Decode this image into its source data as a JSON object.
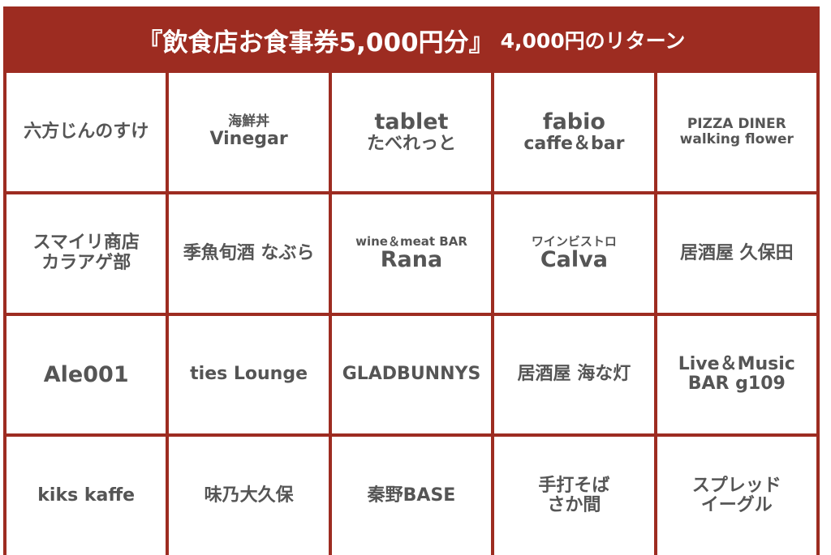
{
  "header": {
    "title_main": "『飲食店お食事券5,000円分』",
    "title_sub": "4,000円のリターン"
  },
  "colors": {
    "accent": "#9d2c21",
    "text": "#555555"
  },
  "shops": [
    {
      "lines": [
        {
          "text": "六方じんのすけ",
          "size": "m"
        }
      ]
    },
    {
      "lines": [
        {
          "text": "海鮮丼",
          "size": "s"
        },
        {
          "text": "Vinegar",
          "size": "m"
        }
      ]
    },
    {
      "lines": [
        {
          "text": "tablet",
          "size": "l"
        },
        {
          "text": "たべれっと",
          "size": "m"
        }
      ]
    },
    {
      "lines": [
        {
          "text": "fabio",
          "size": "l"
        },
        {
          "text": "caffe＆bar",
          "size": "m"
        }
      ]
    },
    {
      "lines": [
        {
          "text": "PIZZA DINER",
          "size": "s"
        },
        {
          "text": "walking flower",
          "size": "s"
        }
      ]
    },
    {
      "lines": [
        {
          "text": "スマイリ商店",
          "size": "m"
        },
        {
          "text": "カラアゲ部",
          "size": "m"
        }
      ]
    },
    {
      "lines": [
        {
          "text": "季魚旬酒 なぶら",
          "size": "m"
        }
      ]
    },
    {
      "lines": [
        {
          "text": "wine＆meat BAR",
          "size": "xs"
        },
        {
          "text": "Rana",
          "size": "l"
        }
      ]
    },
    {
      "lines": [
        {
          "text": "ワインビストロ",
          "size": "xs"
        },
        {
          "text": "Calva",
          "size": "l"
        }
      ]
    },
    {
      "lines": [
        {
          "text": "居酒屋 久保田",
          "size": "m"
        }
      ]
    },
    {
      "lines": [
        {
          "text": "Ale001",
          "size": "l"
        }
      ]
    },
    {
      "lines": [
        {
          "text": "ties Lounge",
          "size": "m"
        }
      ]
    },
    {
      "lines": [
        {
          "text": "GLADBUNNYS",
          "size": "m"
        }
      ]
    },
    {
      "lines": [
        {
          "text": "居酒屋 海な灯",
          "size": "m"
        }
      ]
    },
    {
      "lines": [
        {
          "text": "Live＆Music",
          "size": "m"
        },
        {
          "text": "BAR g109",
          "size": "m"
        }
      ]
    },
    {
      "lines": [
        {
          "text": "kiks kaffe",
          "size": "m"
        }
      ]
    },
    {
      "lines": [
        {
          "text": "味乃大久保",
          "size": "m"
        }
      ]
    },
    {
      "lines": [
        {
          "text": "秦野BASE",
          "size": "m"
        }
      ]
    },
    {
      "lines": [
        {
          "text": "手打そば",
          "size": "m"
        },
        {
          "text": "さか間",
          "size": "m"
        }
      ]
    },
    {
      "lines": [
        {
          "text": "スプレッド",
          "size": "m"
        },
        {
          "text": "イーグル",
          "size": "m"
        }
      ]
    }
  ]
}
